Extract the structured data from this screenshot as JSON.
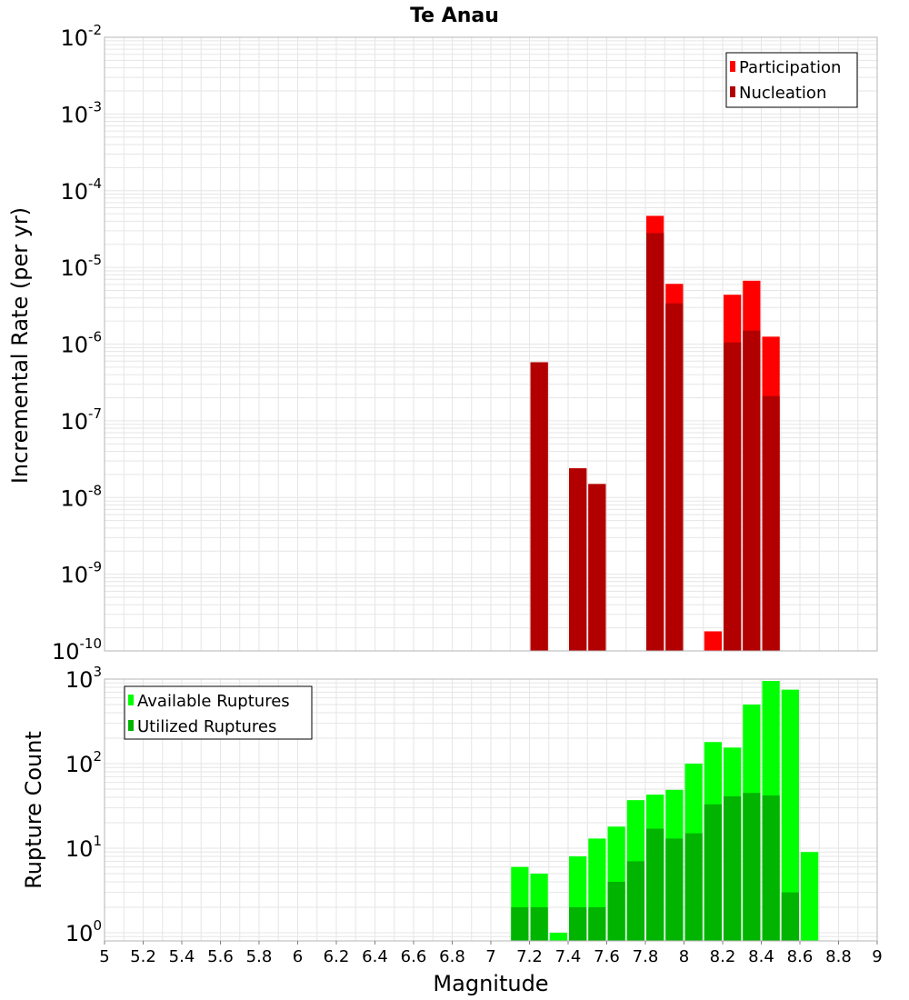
{
  "chart_data": [
    {
      "type": "bar",
      "title": "Te Anau",
      "xlabel": "",
      "ylabel": "Incremental Rate (per yr)",
      "yscale": "log",
      "ylim": [
        1e-10,
        0.01
      ],
      "xlim": [
        5,
        9
      ],
      "grid": true,
      "legend_position": "top-right",
      "series": [
        {
          "name": "Participation",
          "color": "#ff0000",
          "x": [
            7.25,
            7.45,
            7.55,
            7.85,
            7.95,
            8.15,
            8.25,
            8.35,
            8.45
          ],
          "values": [
            5.8e-07,
            2.4e-08,
            1.5e-08,
            4.7e-05,
            6.1e-06,
            1.8e-10,
            4.4e-06,
            6.7e-06,
            1.25e-06
          ]
        },
        {
          "name": "Nucleation",
          "color": "#b20000",
          "x": [
            7.25,
            7.45,
            7.55,
            7.85,
            7.95,
            8.25,
            8.35,
            8.45
          ],
          "values": [
            5.8e-07,
            2.4e-08,
            1.5e-08,
            2.8e-05,
            3.4e-06,
            1.05e-06,
            1.5e-06,
            2.1e-07
          ]
        }
      ]
    },
    {
      "type": "bar",
      "title": "",
      "xlabel": "Magnitude",
      "ylabel": "Rupture Count",
      "yscale": "log",
      "ylim": [
        0.8,
        1000
      ],
      "xlim": [
        5,
        9
      ],
      "grid": true,
      "legend_position": "top-left",
      "series": [
        {
          "name": "Available Ruptures",
          "color": "#00ff00",
          "x": [
            7.15,
            7.25,
            7.35,
            7.45,
            7.55,
            7.65,
            7.75,
            7.85,
            7.95,
            8.05,
            8.15,
            8.25,
            8.35,
            8.45,
            8.55,
            8.65
          ],
          "values": [
            6,
            5,
            1,
            8,
            13,
            18,
            37,
            43,
            49,
            100,
            180,
            155,
            500,
            950,
            750,
            9
          ]
        },
        {
          "name": "Utilized Ruptures",
          "color": "#00b400",
          "x": [
            7.15,
            7.25,
            7.45,
            7.55,
            7.65,
            7.75,
            7.85,
            7.95,
            8.05,
            8.15,
            8.25,
            8.35,
            8.45,
            8.55
          ],
          "values": [
            2,
            2,
            2,
            2,
            4,
            7,
            17,
            13,
            15,
            33,
            41,
            45,
            42,
            3
          ]
        }
      ]
    }
  ],
  "x_ticks": [
    "5",
    "5.2",
    "5.4",
    "5.6",
    "5.8",
    "6",
    "6.2",
    "6.4",
    "6.6",
    "6.8",
    "7",
    "7.2",
    "7.4",
    "7.6",
    "7.8",
    "8",
    "8.2",
    "8.4",
    "8.6",
    "8.8",
    "9"
  ],
  "top_y_ticks": [
    {
      "base": "10",
      "exp": "-2",
      "value": 0.01
    },
    {
      "base": "10",
      "exp": "-3",
      "value": 0.001
    },
    {
      "base": "10",
      "exp": "-4",
      "value": 0.0001
    },
    {
      "base": "10",
      "exp": "-5",
      "value": 1e-05
    },
    {
      "base": "10",
      "exp": "-6",
      "value": 1e-06
    },
    {
      "base": "10",
      "exp": "-7",
      "value": 1e-07
    },
    {
      "base": "10",
      "exp": "-8",
      "value": 1e-08
    },
    {
      "base": "10",
      "exp": "-9",
      "value": 1e-09
    },
    {
      "base": "10",
      "exp": "-10",
      "value": 1e-10
    }
  ],
  "bottom_y_ticks": [
    {
      "base": "10",
      "exp": "3",
      "value": 1000
    },
    {
      "base": "10",
      "exp": "2",
      "value": 100
    },
    {
      "base": "10",
      "exp": "1",
      "value": 10
    },
    {
      "base": "10",
      "exp": "0",
      "value": 1
    }
  ],
  "colors": {
    "grid": "#e6e6e6",
    "frame": "#b4b4b4",
    "bar_separator": "#ffffff"
  }
}
